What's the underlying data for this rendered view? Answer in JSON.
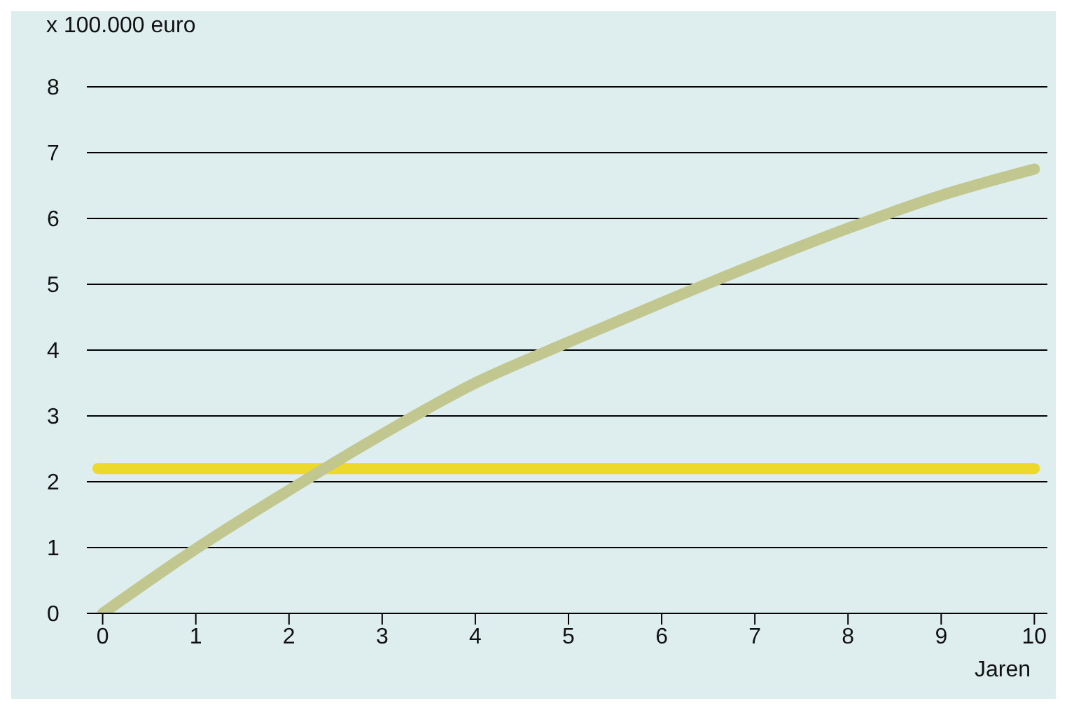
{
  "chart_data": {
    "type": "line",
    "ylabel": "x 100.000 euro",
    "xlabel": "Jaren",
    "series": [
      {
        "color": "#ecd92b",
        "x": [
          -0.05,
          10
        ],
        "values": [
          2.2,
          2.2
        ]
      },
      {
        "color": "#c2c78f",
        "x": [
          0,
          1,
          2,
          3,
          4,
          5,
          6,
          7,
          8,
          9,
          10
        ],
        "values": [
          0,
          0.98,
          1.87,
          2.72,
          3.5,
          4.12,
          4.72,
          5.3,
          5.85,
          6.35,
          6.75
        ]
      }
    ],
    "xlim": [
      -0.17,
      10.14
    ],
    "xticks": [
      0,
      1,
      2,
      3,
      4,
      5,
      6,
      7,
      8,
      9,
      10
    ],
    "ylim": [
      0,
      8
    ],
    "yticks": [
      0,
      1,
      2,
      3,
      4,
      5,
      6,
      7,
      8
    ],
    "grid": "y",
    "legend": false,
    "marker": "none",
    "line_style": "solid"
  }
}
